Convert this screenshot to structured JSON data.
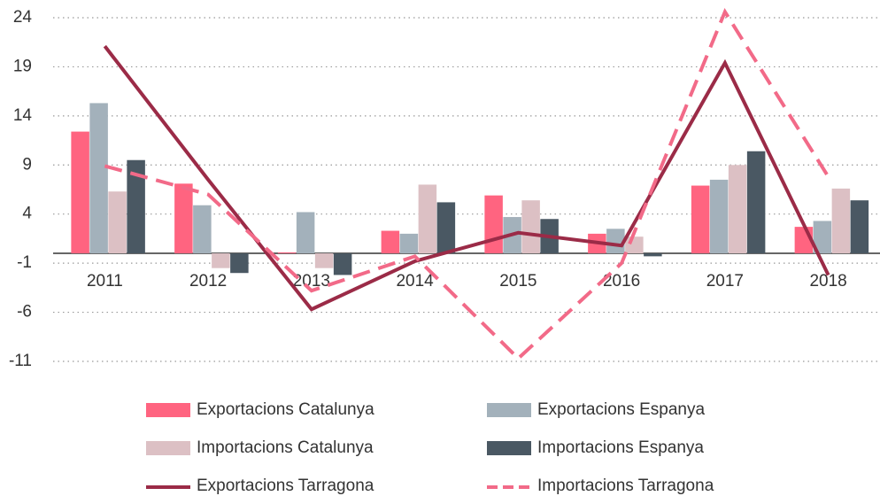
{
  "chart_data": {
    "type": "bar",
    "categories": [
      "2011",
      "2012",
      "2013",
      "2014",
      "2015",
      "2016",
      "2017",
      "2018"
    ],
    "series": [
      {
        "name": "Exportacions Catalunya",
        "type": "bar",
        "color": "#ff6480",
        "values": [
          12.4,
          7.1,
          0.1,
          2.3,
          5.9,
          2.0,
          6.9,
          2.7
        ]
      },
      {
        "name": "Exportacions Espanya",
        "type": "bar",
        "color": "#a3b1bb",
        "values": [
          15.3,
          4.9,
          4.2,
          2.0,
          3.7,
          2.5,
          7.5,
          3.3
        ]
      },
      {
        "name": "Importacions Catalunya",
        "type": "bar",
        "color": "#dcc0c4",
        "values": [
          6.3,
          -1.5,
          -1.5,
          7.0,
          5.4,
          1.7,
          9.0,
          6.6
        ]
      },
      {
        "name": "Importacions Espanya",
        "type": "bar",
        "color": "#4a5863",
        "values": [
          9.5,
          -2.0,
          -2.2,
          5.2,
          3.5,
          -0.3,
          10.4,
          5.4
        ]
      },
      {
        "name": "Exportacions Tarragona",
        "type": "line",
        "color": "#9b2b47",
        "dashed": false,
        "values": [
          21.1,
          7.5,
          -5.7,
          -0.8,
          2.1,
          0.8,
          19.4,
          -2.2
        ]
      },
      {
        "name": "Importacions Tarragona",
        "type": "line",
        "color": "#f26a88",
        "dashed": true,
        "values": [
          8.9,
          6.0,
          -3.8,
          -0.3,
          -10.7,
          -1.0,
          24.6,
          7.8
        ]
      }
    ],
    "ylim": [
      -11,
      25
    ],
    "yticks": [
      24,
      19,
      14,
      9,
      4,
      -1,
      -6,
      -11
    ],
    "grid": true
  }
}
